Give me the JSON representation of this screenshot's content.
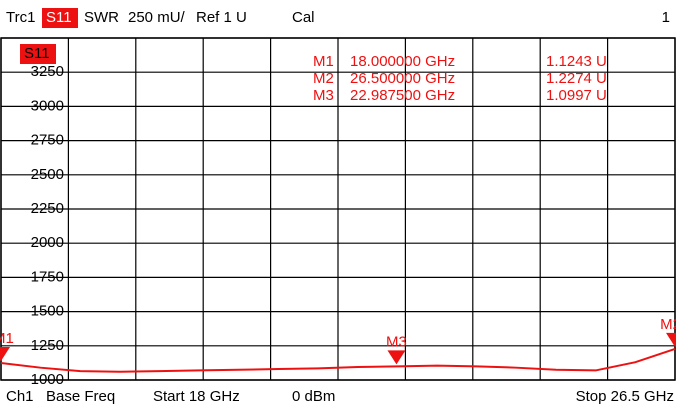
{
  "header": {
    "trace": "Trc1",
    "param": "S11",
    "format": "SWR",
    "scale": "250 mU/",
    "ref": "Ref 1 U",
    "cal": "Cal",
    "channel_no": "1"
  },
  "footer": {
    "channel": "Ch1",
    "mode": "Base Freq",
    "start": "Start 18 GHz",
    "power": "0 dBm",
    "stop": "Stop 26.5 GHz"
  },
  "chart_data": {
    "type": "line",
    "trace_label": "S11",
    "color": "#ee1111",
    "x": [
      18,
      18.5,
      19,
      19.5,
      20,
      20.5,
      21,
      21.5,
      22,
      22.5,
      23,
      23.5,
      24,
      24.5,
      25,
      25.5,
      26,
      26.5
    ],
    "values": [
      1124,
      1090,
      1065,
      1060,
      1065,
      1070,
      1075,
      1080,
      1085,
      1095,
      1100,
      1105,
      1100,
      1090,
      1075,
      1070,
      1130,
      1227
    ],
    "xlim": [
      18,
      26.5
    ],
    "ylim": [
      1000,
      3500
    ],
    "xgrid": [
      18,
      18.85,
      19.7,
      20.55,
      21.4,
      22.25,
      23.1,
      23.95,
      24.8,
      25.65,
      26.5
    ],
    "yticks": [
      1000,
      1250,
      1500,
      1750,
      2000,
      2250,
      2500,
      2750,
      3000,
      3250,
      3500
    ],
    "markers": [
      {
        "name": "M1",
        "x": 18,
        "value": 1124.3,
        "x_label": "18.000000 GHz",
        "value_label": "1.1243 U"
      },
      {
        "name": "M2",
        "x": 26.5,
        "value": 1227.4,
        "x_label": "26.500000 GHz",
        "value_label": "1.2274 U"
      },
      {
        "name": "M3",
        "x": 22.9875,
        "value": 1099.7,
        "x_label": "22.987500 GHz",
        "value_label": "1.0997 U"
      }
    ]
  }
}
